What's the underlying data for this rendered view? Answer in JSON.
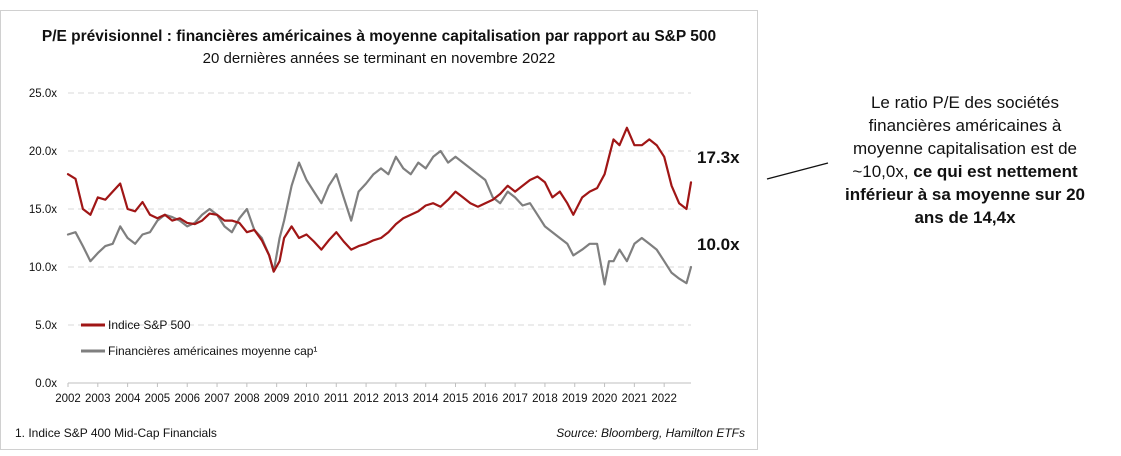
{
  "chart_data": {
    "type": "line",
    "title": "P/E prévisionnel : financières américaines à moyenne capitalisation par rapport au S&P 500",
    "subtitle": "20 dernières années se terminant en novembre 2022",
    "ylim": [
      0,
      25
    ],
    "yticks": [
      "0.0x",
      "5.0x",
      "10.0x",
      "15.0x",
      "20.0x",
      "25.0x"
    ],
    "xticks": [
      "2002",
      "2003",
      "2004",
      "2005",
      "2006",
      "2007",
      "2008",
      "2009",
      "2010",
      "2011",
      "2012",
      "2013",
      "2014",
      "2015",
      "2016",
      "2017",
      "2018",
      "2019",
      "2020",
      "2021",
      "2022"
    ],
    "grid": "horizontal dashed",
    "legend_position": "bottom-left",
    "colors": {
      "sp500": "#a01616",
      "midcap": "#7f7f7f"
    },
    "series": [
      {
        "name": "Indice S&P 500",
        "x": [
          2002.0,
          2002.25,
          2002.5,
          2002.75,
          2003.0,
          2003.25,
          2003.5,
          2003.75,
          2004.0,
          2004.25,
          2004.5,
          2004.75,
          2005.0,
          2005.25,
          2005.5,
          2005.75,
          2006.0,
          2006.25,
          2006.5,
          2006.75,
          2007.0,
          2007.25,
          2007.5,
          2007.75,
          2008.0,
          2008.25,
          2008.5,
          2008.75,
          2008.9,
          2009.1,
          2009.25,
          2009.5,
          2009.75,
          2010.0,
          2010.25,
          2010.5,
          2010.75,
          2011.0,
          2011.25,
          2011.5,
          2011.75,
          2012.0,
          2012.25,
          2012.5,
          2012.75,
          2013.0,
          2013.25,
          2013.5,
          2013.75,
          2014.0,
          2014.25,
          2014.5,
          2014.75,
          2015.0,
          2015.25,
          2015.5,
          2015.75,
          2016.0,
          2016.25,
          2016.5,
          2016.75,
          2017.0,
          2017.25,
          2017.5,
          2017.75,
          2018.0,
          2018.25,
          2018.5,
          2018.75,
          2018.95,
          2019.25,
          2019.5,
          2019.75,
          2020.0,
          2020.15,
          2020.3,
          2020.5,
          2020.75,
          2021.0,
          2021.25,
          2021.5,
          2021.75,
          2022.0,
          2022.25,
          2022.5,
          2022.75,
          2022.9
        ],
        "values": [
          18.0,
          17.6,
          15.0,
          14.5,
          16.0,
          15.8,
          16.5,
          17.2,
          15.0,
          14.8,
          15.6,
          14.5,
          14.2,
          14.5,
          14.0,
          14.2,
          13.8,
          13.7,
          14.0,
          14.6,
          14.5,
          14.0,
          14.0,
          13.8,
          13.0,
          13.2,
          12.3,
          11.0,
          9.6,
          10.5,
          12.5,
          13.5,
          12.5,
          12.8,
          12.2,
          11.5,
          12.3,
          13.0,
          12.2,
          11.5,
          11.8,
          12.0,
          12.3,
          12.5,
          13.0,
          13.7,
          14.2,
          14.5,
          14.8,
          15.3,
          15.5,
          15.2,
          15.8,
          16.5,
          16.0,
          15.5,
          15.2,
          15.5,
          15.8,
          16.3,
          17.0,
          16.5,
          17.0,
          17.5,
          17.8,
          17.3,
          16.0,
          16.5,
          15.5,
          14.5,
          16.0,
          16.5,
          16.8,
          18.0,
          19.5,
          21.0,
          20.5,
          22.0,
          20.5,
          20.5,
          21.0,
          20.5,
          19.5,
          17.0,
          15.5,
          15.0,
          17.3
        ]
      },
      {
        "name": "Financières américaines moyenne cap¹",
        "x": [
          2002.0,
          2002.25,
          2002.5,
          2002.75,
          2003.0,
          2003.25,
          2003.5,
          2003.75,
          2004.0,
          2004.25,
          2004.5,
          2004.75,
          2005.0,
          2005.25,
          2005.5,
          2005.75,
          2006.0,
          2006.25,
          2006.5,
          2006.75,
          2007.0,
          2007.25,
          2007.5,
          2007.75,
          2008.0,
          2008.25,
          2008.5,
          2008.75,
          2008.9,
          2009.1,
          2009.25,
          2009.5,
          2009.75,
          2010.0,
          2010.25,
          2010.5,
          2010.75,
          2011.0,
          2011.25,
          2011.5,
          2011.75,
          2012.0,
          2012.25,
          2012.5,
          2012.75,
          2013.0,
          2013.25,
          2013.5,
          2013.75,
          2014.0,
          2014.25,
          2014.5,
          2014.75,
          2015.0,
          2015.25,
          2015.5,
          2015.75,
          2016.0,
          2016.25,
          2016.5,
          2016.75,
          2017.0,
          2017.25,
          2017.5,
          2017.75,
          2018.0,
          2018.25,
          2018.5,
          2018.75,
          2018.95,
          2019.25,
          2019.5,
          2019.75,
          2020.0,
          2020.15,
          2020.3,
          2020.5,
          2020.75,
          2021.0,
          2021.25,
          2021.5,
          2021.75,
          2022.0,
          2022.25,
          2022.5,
          2022.75,
          2022.9
        ],
        "values": [
          12.8,
          13.0,
          11.8,
          10.5,
          11.2,
          11.8,
          12.0,
          13.5,
          12.5,
          12.0,
          12.8,
          13.0,
          14.0,
          14.5,
          14.3,
          14.0,
          13.5,
          13.8,
          14.5,
          15.0,
          14.5,
          13.5,
          13.0,
          14.2,
          15.0,
          13.2,
          12.5,
          11.0,
          9.6,
          12.5,
          14.0,
          17.0,
          19.0,
          17.5,
          16.5,
          15.5,
          17.0,
          18.0,
          16.0,
          14.0,
          16.5,
          17.2,
          18.0,
          18.5,
          18.0,
          19.5,
          18.5,
          18.0,
          19.0,
          18.5,
          19.5,
          20.0,
          19.0,
          19.5,
          19.0,
          18.5,
          18.0,
          17.5,
          16.0,
          15.5,
          16.5,
          16.0,
          15.3,
          15.5,
          14.5,
          13.5,
          13.0,
          12.5,
          12.0,
          11.0,
          11.5,
          12.0,
          12.0,
          8.5,
          10.5,
          10.5,
          11.5,
          10.5,
          12.0,
          12.5,
          12.0,
          11.5,
          10.5,
          9.5,
          9.0,
          8.6,
          10.0
        ]
      }
    ],
    "end_labels": {
      "sp500": "17.3x",
      "midcap": "10.0x"
    },
    "footnote": "1. Indice S&P 400 Mid-Cap Financials",
    "source": "Source: Bloomberg, Hamilton ETFs"
  },
  "side_note": {
    "part1": "Le ratio P/E des sociétés financières américaines à moyenne capitalisation est de ~10,0x, ",
    "part2": "ce qui est nettement inférieur à sa moyenne sur 20 ans de 14,4x"
  }
}
